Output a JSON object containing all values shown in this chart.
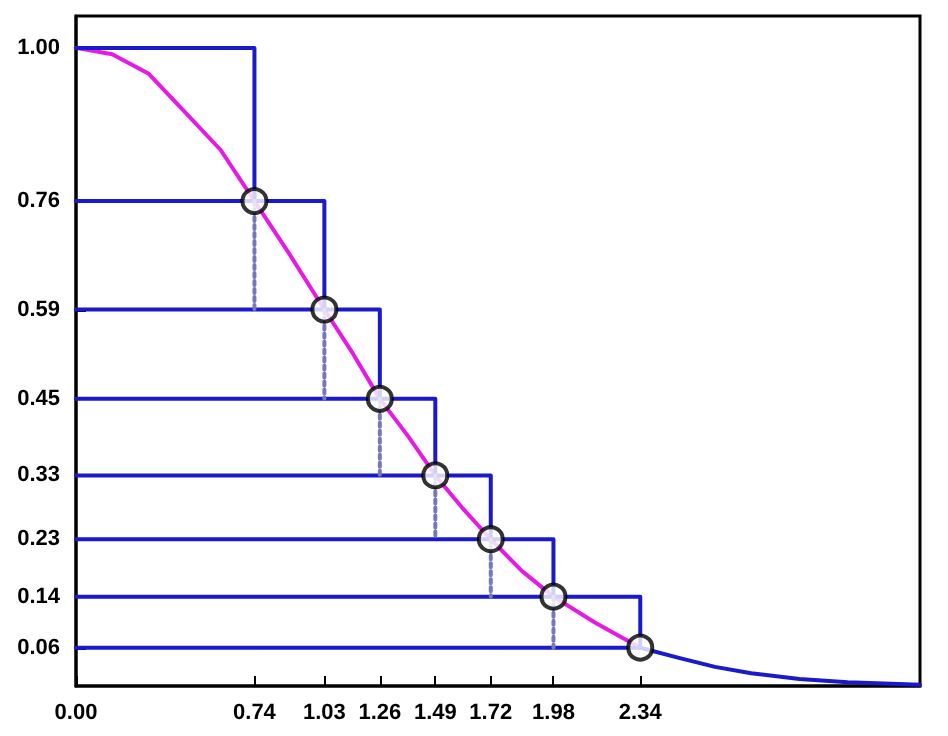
{
  "chart_data": {
    "type": "line",
    "xlim": [
      0,
      3.5
    ],
    "ylim": [
      0,
      1.05
    ],
    "xticks": [
      {
        "value": 0,
        "label": "0.00"
      },
      {
        "value": 0.74,
        "label": "0.74"
      },
      {
        "value": 1.03,
        "label": "1.03"
      },
      {
        "value": 1.26,
        "label": "1.26"
      },
      {
        "value": 1.49,
        "label": "1.49"
      },
      {
        "value": 1.72,
        "label": "1.72"
      },
      {
        "value": 1.98,
        "label": "1.98"
      },
      {
        "value": 2.34,
        "label": "2.34"
      }
    ],
    "yticks": [
      {
        "value": 0.06,
        "label": "0.06"
      },
      {
        "value": 0.14,
        "label": "0.14"
      },
      {
        "value": 0.23,
        "label": "0.23"
      },
      {
        "value": 0.33,
        "label": "0.33"
      },
      {
        "value": 0.45,
        "label": "0.45"
      },
      {
        "value": 0.59,
        "label": "0.59"
      },
      {
        "value": 0.76,
        "label": "0.76"
      },
      {
        "value": 1,
        "label": "1.00"
      }
    ],
    "grid": false,
    "series": [
      {
        "color": "#e619e6",
        "marker": "none",
        "x": [
          0,
          0.15,
          0.3,
          0.45,
          0.6,
          0.74,
          0.88,
          1.03,
          1.15,
          1.26,
          1.38,
          1.49,
          1.6,
          1.72,
          1.85,
          1.98,
          2.15,
          2.34
        ],
        "values": [
          1,
          0.99,
          0.96,
          0.9,
          0.84,
          0.76,
          0.68,
          0.59,
          0.52,
          0.45,
          0.39,
          0.33,
          0.28,
          0.23,
          0.18,
          0.14,
          0.1,
          0.06
        ]
      },
      {
        "color": "#1a1acc",
        "marker": "none",
        "x": [
          2.34,
          2.5,
          2.65,
          2.8,
          3.0,
          3.2,
          3.5
        ],
        "values": [
          0.06,
          0.044,
          0.03,
          0.02,
          0.011,
          0.006,
          0.002
        ]
      },
      {
        "type": "line",
        "color": "#1a1acc",
        "marker": "none",
        "x": [
          0,
          0.74,
          0.74
        ],
        "values": [
          1,
          1,
          0.76
        ]
      },
      {
        "type": "line",
        "color": "#1a1acc",
        "marker": "none",
        "x": [
          0,
          1.03,
          1.03
        ],
        "values": [
          0.76,
          0.76,
          0.59
        ]
      },
      {
        "type": "line",
        "color": "#1a1acc",
        "marker": "none",
        "x": [
          0,
          1.26,
          1.26
        ],
        "values": [
          0.59,
          0.59,
          0.45
        ]
      },
      {
        "type": "line",
        "color": "#1a1acc",
        "marker": "none",
        "x": [
          0,
          1.49,
          1.49
        ],
        "values": [
          0.45,
          0.45,
          0.33
        ]
      },
      {
        "type": "line",
        "color": "#1a1acc",
        "marker": "none",
        "x": [
          0,
          1.72,
          1.72
        ],
        "values": [
          0.33,
          0.33,
          0.23
        ]
      },
      {
        "type": "line",
        "color": "#1a1acc",
        "marker": "none",
        "x": [
          0,
          1.98,
          1.98
        ],
        "values": [
          0.23,
          0.23,
          0.14
        ]
      },
      {
        "type": "line",
        "color": "#1a1acc",
        "marker": "none",
        "x": [
          0,
          2.34,
          2.34
        ],
        "values": [
          0.14,
          0.14,
          0.06
        ]
      },
      {
        "type": "line",
        "color": "#1a1acc",
        "marker": "none",
        "x": [
          0,
          2.34
        ],
        "values": [
          0.06,
          0.06
        ]
      },
      {
        "type": "line",
        "color": "#7777bb",
        "marker": "none",
        "line_style": "dotted",
        "x": [
          0.74,
          0.74
        ],
        "values": [
          0.76,
          0.59
        ]
      },
      {
        "type": "line",
        "color": "#7777bb",
        "marker": "none",
        "line_style": "dotted",
        "x": [
          1.03,
          1.03
        ],
        "values": [
          0.59,
          0.45
        ]
      },
      {
        "type": "line",
        "color": "#7777bb",
        "marker": "none",
        "line_style": "dotted",
        "x": [
          1.26,
          1.26
        ],
        "values": [
          0.45,
          0.33
        ]
      },
      {
        "type": "line",
        "color": "#7777bb",
        "marker": "none",
        "line_style": "dotted",
        "x": [
          1.49,
          1.49
        ],
        "values": [
          0.33,
          0.23
        ]
      },
      {
        "type": "line",
        "color": "#7777bb",
        "marker": "none",
        "line_style": "dotted",
        "x": [
          1.72,
          1.72
        ],
        "values": [
          0.23,
          0.14
        ]
      },
      {
        "type": "line",
        "color": "#7777bb",
        "marker": "none",
        "line_style": "dotted",
        "x": [
          1.98,
          1.98
        ],
        "values": [
          0.14,
          0.06
        ]
      },
      {
        "type": "scatter",
        "color": "#000000",
        "marker": "circle",
        "x": [
          0.74,
          1.03,
          1.26,
          1.49,
          1.72,
          1.98,
          2.34
        ],
        "values": [
          0.76,
          0.59,
          0.45,
          0.33,
          0.23,
          0.14,
          0.06
        ]
      }
    ]
  }
}
